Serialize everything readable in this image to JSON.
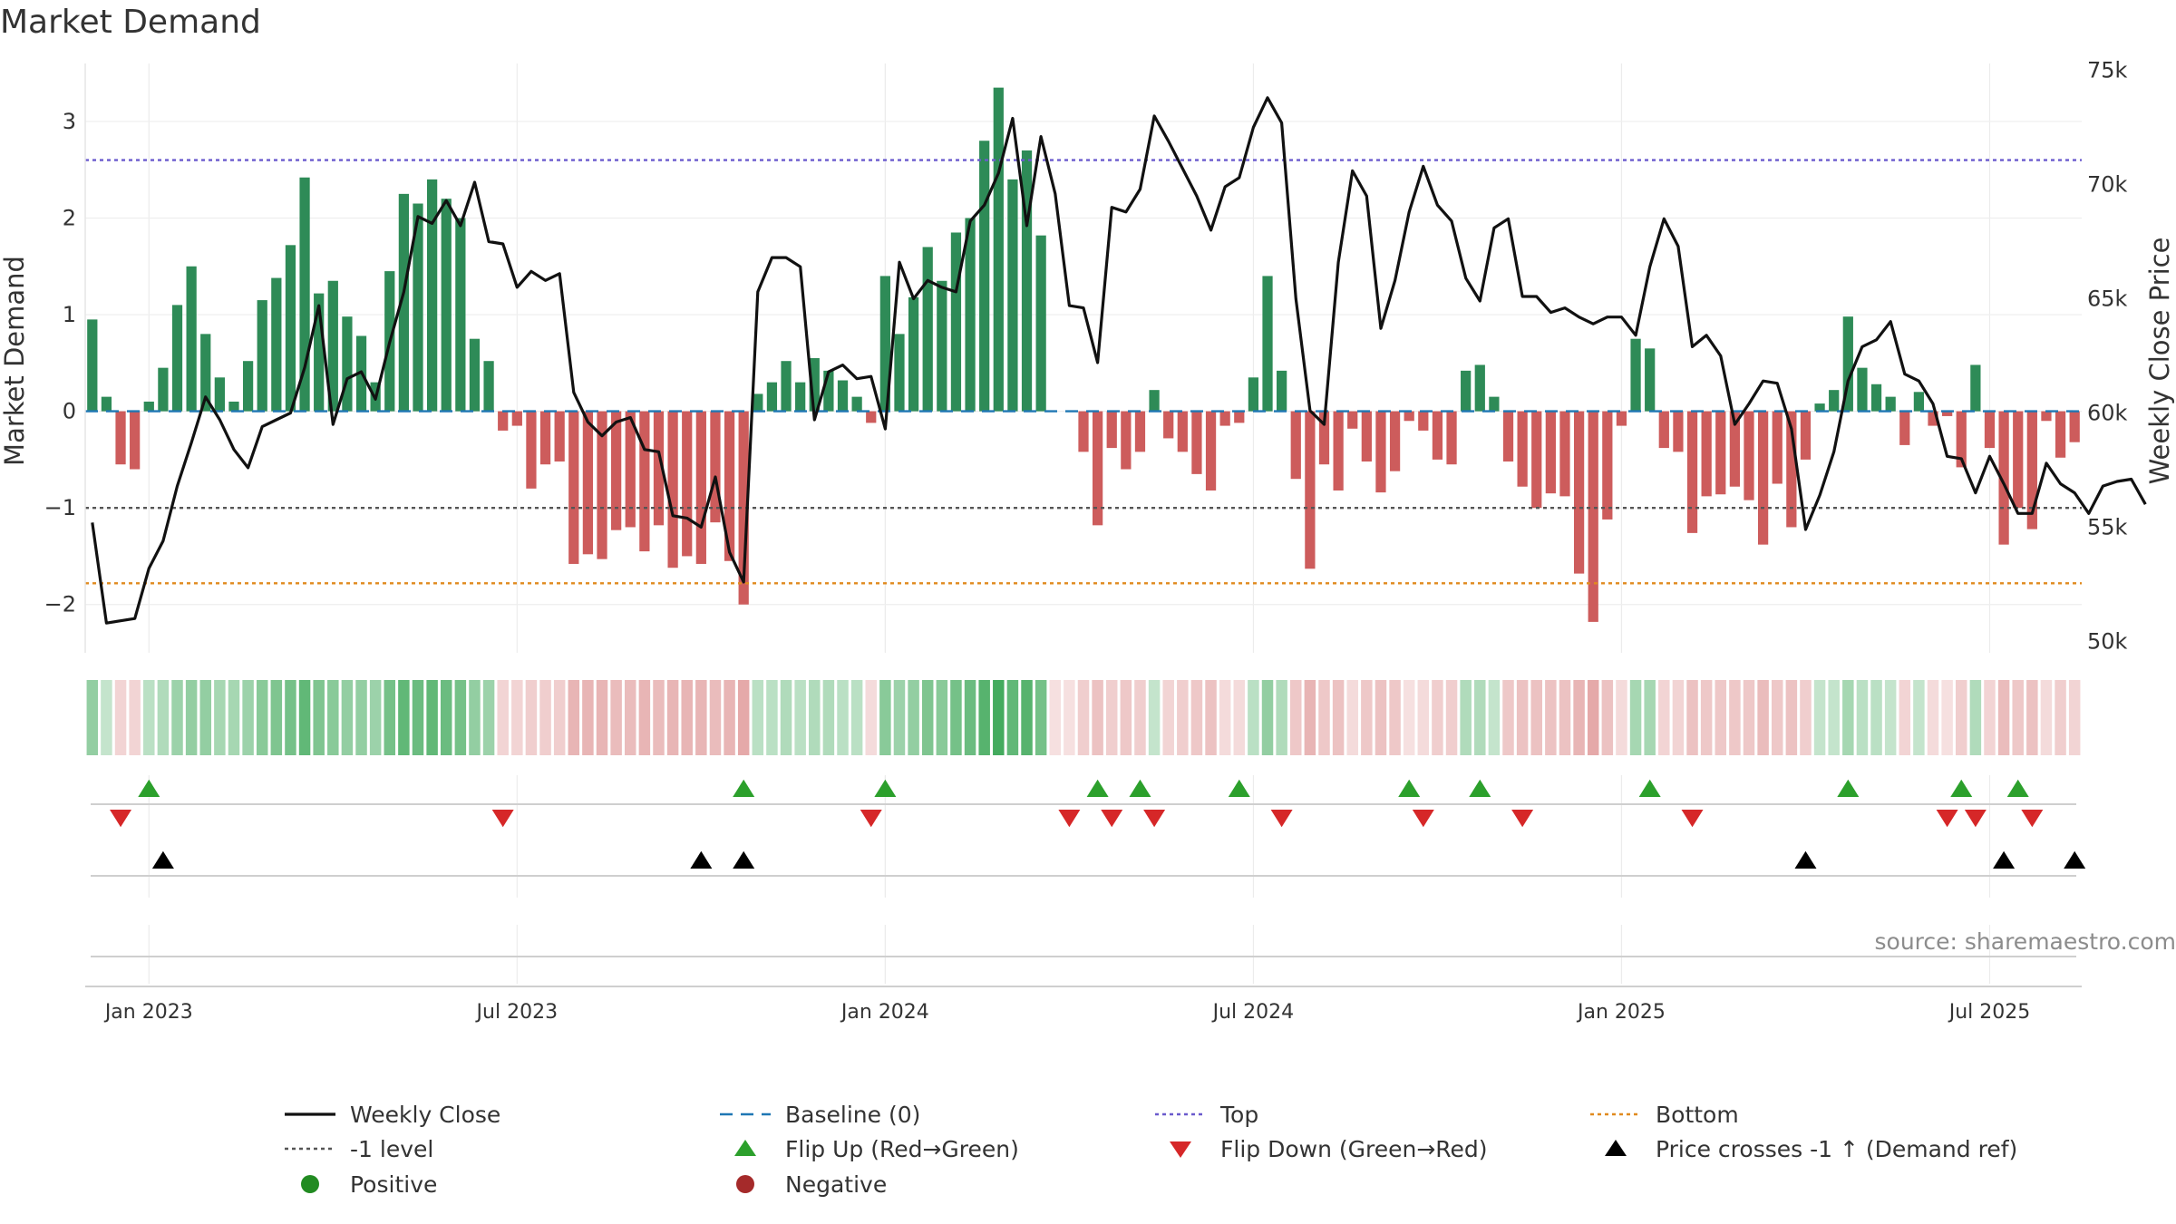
{
  "title": "Market Demand",
  "source": "source: sharemaestro.com",
  "colors": {
    "positive": "#2e8b57",
    "negative": "#cd5c5c",
    "price": "#111111",
    "baseline": "#1f77b4",
    "top": "#6a5acd",
    "bottom": "#e08a1e",
    "minus1": "#555555",
    "flip_up": "#2ca02c",
    "flip_down": "#d62728",
    "cross": "#000000"
  },
  "chart_data": {
    "type": "bar+line",
    "title": "Market Demand",
    "ylabel": "Market Demand",
    "y2label": "Weekly Close Price",
    "ylim": [
      -2.5,
      3.6
    ],
    "y2lim": [
      49500,
      75300
    ],
    "yticks": [
      {
        "v": 3,
        "label": "3"
      },
      {
        "v": 2,
        "label": "2"
      },
      {
        "v": 1,
        "label": "1"
      },
      {
        "v": 0,
        "label": "0"
      },
      {
        "v": -1,
        "label": "−1"
      },
      {
        "v": -2,
        "label": "−2"
      }
    ],
    "y2ticks": [
      {
        "v": 75000,
        "label": "75k"
      },
      {
        "v": 70000,
        "label": "70k"
      },
      {
        "v": 65000,
        "label": "65k"
      },
      {
        "v": 60000,
        "label": "60k"
      },
      {
        "v": 55000,
        "label": "55k"
      },
      {
        "v": 50000,
        "label": "50k"
      }
    ],
    "xticks": [
      {
        "i": 4,
        "label": "Jan 2023"
      },
      {
        "i": 30,
        "label": "Jul 2023"
      },
      {
        "i": 56,
        "label": "Jan 2024"
      },
      {
        "i": 82,
        "label": "Jul 2024"
      },
      {
        "i": 108,
        "label": "Jan 2025"
      },
      {
        "i": 134,
        "label": "Jul 2025"
      }
    ],
    "levels": {
      "top": 2.6,
      "bottom": -1.78,
      "minus_one": -1
    },
    "demand": [
      0.95,
      0.15,
      -0.55,
      -0.6,
      0.1,
      0.45,
      1.1,
      1.5,
      0.8,
      0.35,
      0.1,
      0.52,
      1.15,
      1.38,
      1.72,
      2.42,
      1.22,
      1.35,
      0.98,
      0.78,
      0.3,
      1.45,
      2.25,
      2.15,
      2.4,
      2.2,
      2.0,
      0.75,
      0.52,
      -0.2,
      -0.15,
      -0.8,
      -0.55,
      -0.52,
      -1.58,
      -1.48,
      -1.53,
      -1.23,
      -1.2,
      -1.45,
      -1.18,
      -1.62,
      -1.5,
      -1.58,
      -1.15,
      -1.55,
      -2.0,
      0.18,
      0.3,
      0.52,
      0.3,
      0.55,
      0.42,
      0.32,
      0.15,
      -0.12,
      1.4,
      0.8,
      1.18,
      1.7,
      1.35,
      1.85,
      2.0,
      2.8,
      3.35,
      2.4,
      2.7,
      1.82,
      0,
      0,
      -0.42,
      -1.18,
      -0.38,
      -0.6,
      -0.42,
      0.22,
      -0.28,
      -0.42,
      -0.65,
      -0.82,
      -0.15,
      -0.12,
      0.35,
      1.4,
      0.42,
      -0.7,
      -1.63,
      -0.55,
      -0.82,
      -0.18,
      -0.52,
      -0.84,
      -0.62,
      -0.1,
      -0.2,
      -0.5,
      -0.55,
      0.42,
      0.48,
      0.15,
      -0.52,
      -0.78,
      -1.0,
      -0.85,
      -0.88,
      -1.68,
      -2.18,
      -1.12,
      -0.15,
      0.75,
      0.65,
      -0.38,
      -0.42,
      -1.26,
      -0.88,
      -0.86,
      -0.78,
      -0.92,
      -1.38,
      -0.75,
      -1.2,
      -0.5,
      0.08,
      0.22,
      0.98,
      0.45,
      0.28,
      0.15,
      -0.35,
      0.2,
      -0.15,
      -0.05,
      -0.58,
      0.48,
      -0.38,
      -1.38,
      -1.0,
      -1.22,
      -0.1,
      -0.48,
      -0.32
    ],
    "close": [
      55200,
      50800,
      50900,
      51000,
      53200,
      54400,
      56800,
      58700,
      60700,
      59700,
      58400,
      57600,
      59400,
      59700,
      60000,
      62000,
      64700,
      59500,
      61500,
      61800,
      60600,
      63100,
      65300,
      68600,
      68300,
      69300,
      68200,
      70100,
      67500,
      67400,
      65500,
      66200,
      65800,
      66100,
      60900,
      59600,
      59000,
      59600,
      59800,
      58400,
      58300,
      55500,
      55400,
      55000,
      57200,
      53900,
      52600,
      65300,
      66800,
      66800,
      66400,
      59700,
      61800,
      62100,
      61500,
      61600,
      59300,
      66600,
      65000,
      65800,
      65500,
      65300,
      68400,
      69100,
      70500,
      72900,
      68200,
      72100,
      69600,
      64700,
      64600,
      62200,
      69000,
      68800,
      69800,
      73000,
      71900,
      70700,
      69500,
      68000,
      69900,
      70300,
      72500,
      73800,
      72700,
      65000,
      60100,
      59500,
      66600,
      70600,
      69500,
      63700,
      65800,
      68800,
      70800,
      69100,
      68400,
      65900,
      64900,
      68100,
      68500,
      65100,
      65100,
      64400,
      64600,
      64200,
      63900,
      64200,
      64200,
      63400,
      66400,
      68500,
      67300,
      62900,
      63400,
      62500,
      59500,
      60400,
      61400,
      61300,
      59300,
      54900,
      56400,
      58300,
      61400,
      62900,
      63200,
      64000,
      61700,
      61400,
      60400,
      58100,
      58000,
      56500,
      58100,
      56900,
      55600,
      55600,
      57800,
      56900,
      56500,
      55600,
      56800,
      57000,
      57100,
      56000
    ],
    "flip_up": [
      4,
      46,
      56,
      71,
      74,
      81,
      93,
      98,
      110,
      124,
      132,
      136
    ],
    "flip_down": [
      2,
      29,
      55,
      69,
      72,
      75,
      84,
      94,
      101,
      113,
      131,
      133,
      137
    ],
    "price_cross": [
      5,
      43,
      46,
      121,
      135,
      140
    ],
    "heat_intensity": [
      0.55,
      0.3,
      0.35,
      0.35,
      0.35,
      0.4,
      0.5,
      0.55,
      0.55,
      0.45,
      0.45,
      0.5,
      0.6,
      0.65,
      0.7,
      0.8,
      0.65,
      0.6,
      0.55,
      0.55,
      0.5,
      0.7,
      0.8,
      0.75,
      0.8,
      0.75,
      0.7,
      0.55,
      0.5,
      0.35,
      0.35,
      0.4,
      0.4,
      0.4,
      0.6,
      0.6,
      0.6,
      0.55,
      0.55,
      0.6,
      0.55,
      0.6,
      0.6,
      0.6,
      0.55,
      0.6,
      0.7,
      0.35,
      0.35,
      0.4,
      0.35,
      0.4,
      0.4,
      0.35,
      0.35,
      0.3,
      0.6,
      0.5,
      0.55,
      0.65,
      0.6,
      0.7,
      0.75,
      0.85,
      0.95,
      0.8,
      0.85,
      0.7,
      0.25,
      0.25,
      0.4,
      0.5,
      0.4,
      0.45,
      0.4,
      0.3,
      0.35,
      0.4,
      0.45,
      0.5,
      0.3,
      0.3,
      0.35,
      0.55,
      0.4,
      0.45,
      0.6,
      0.45,
      0.5,
      0.3,
      0.45,
      0.5,
      0.45,
      0.25,
      0.3,
      0.4,
      0.4,
      0.4,
      0.4,
      0.3,
      0.45,
      0.5,
      0.5,
      0.5,
      0.5,
      0.6,
      0.7,
      0.5,
      0.3,
      0.45,
      0.45,
      0.35,
      0.35,
      0.5,
      0.45,
      0.45,
      0.45,
      0.45,
      0.55,
      0.45,
      0.5,
      0.4,
      0.3,
      0.3,
      0.45,
      0.35,
      0.35,
      0.3,
      0.35,
      0.3,
      0.3,
      0.25,
      0.4,
      0.4,
      0.35,
      0.55,
      0.45,
      0.5,
      0.3,
      0.4,
      0.35
    ]
  },
  "legend": [
    {
      "key": "line",
      "color": "#111111",
      "label": "Weekly Close"
    },
    {
      "key": "dashed",
      "color": "#1f77b4",
      "label": "Baseline (0)"
    },
    {
      "key": "dotted",
      "color": "#6a5acd",
      "label": "Top"
    },
    {
      "key": "dotted",
      "color": "#e08a1e",
      "label": "Bottom"
    },
    {
      "key": "dotted",
      "color": "#555555",
      "label": "-1 level"
    },
    {
      "key": "tri-up",
      "color": "#2ca02c",
      "label": "Flip Up (Red→Green)"
    },
    {
      "key": "tri-down",
      "color": "#d62728",
      "label": "Flip Down (Green→Red)"
    },
    {
      "key": "tri-up",
      "color": "#000000",
      "label": "Price crosses -1 ↑ (Demand ref)"
    },
    {
      "key": "dot",
      "color": "#228b22",
      "label": "Positive"
    },
    {
      "key": "dot",
      "color": "#a52a2a",
      "label": "Negative"
    }
  ]
}
